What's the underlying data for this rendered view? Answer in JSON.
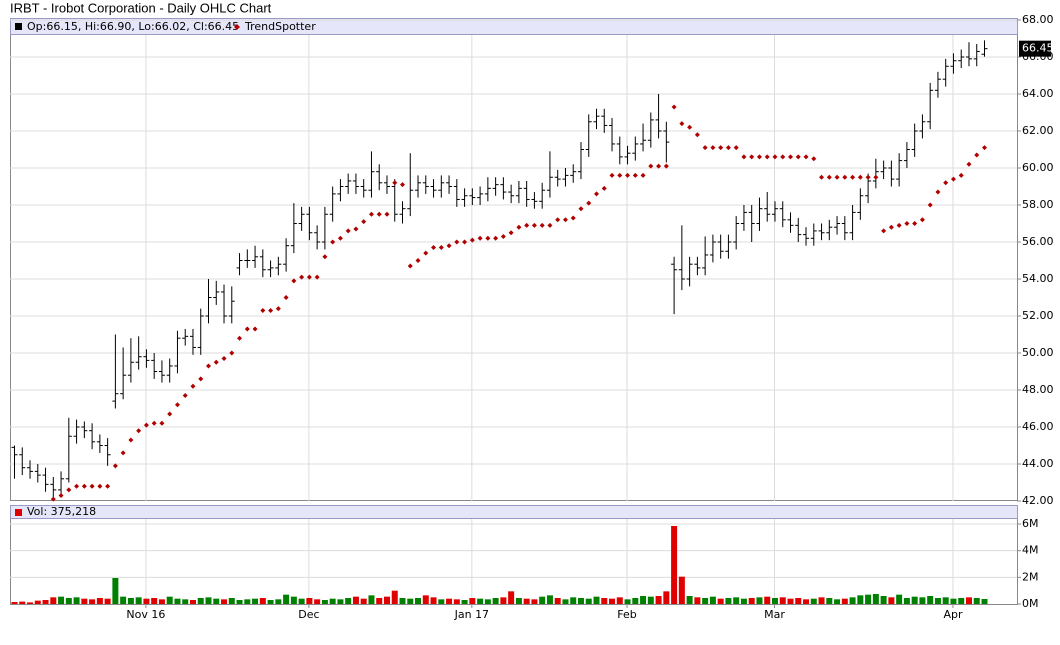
{
  "chart_data": [
    {
      "type": "ohlc",
      "title": "IRBT - Irobot Corporation - Daily OHLC Chart",
      "summary": "Op:66.15, Hi:66.90, Lo:66.02, Cl:66.45",
      "color": "#000000",
      "open": [
        44.9,
        44.5,
        43.8,
        43.6,
        43.4,
        42.9,
        42.6,
        43.2,
        45.5,
        46.0,
        45.8,
        45.2,
        45.0,
        47.4,
        47.8,
        48.8,
        49.5,
        49.8,
        49.6,
        49.0,
        48.8,
        49.3,
        50.8,
        50.9,
        50.3,
        52.0,
        53.0,
        53.3,
        52.0,
        54.6,
        55.0,
        55.0,
        55.2,
        54.5,
        54.6,
        54.8,
        55.8,
        57.0,
        57.5,
        56.5,
        56.0,
        57.5,
        58.6,
        59.0,
        59.3,
        59.0,
        58.8,
        59.8,
        59.2,
        59.0,
        57.5,
        57.8,
        58.8,
        59.2,
        59.0,
        58.8,
        59.2,
        59.0,
        58.3,
        58.5,
        58.4,
        58.6,
        58.9,
        59.1,
        58.7,
        58.5,
        58.9,
        58.3,
        58.2,
        58.8,
        59.5,
        59.4,
        59.6,
        59.8,
        61.0,
        62.5,
        62.8,
        62.3,
        61.3,
        60.6,
        60.8,
        61.3,
        61.5,
        62.6,
        62.0,
        54.8,
        54.5,
        54.0,
        54.8,
        54.6,
        55.3,
        56.0,
        55.5,
        56.0,
        57.0,
        57.6,
        57.0,
        57.8,
        57.5,
        57.8,
        57.2,
        56.9,
        56.4,
        56.2,
        56.6,
        56.5,
        56.8,
        57.0,
        56.5,
        57.6,
        58.5,
        59.3,
        59.8,
        60.0,
        59.4,
        60.4,
        61.0,
        62.0,
        62.5,
        64.2,
        64.8,
        65.5,
        65.8,
        66.0,
        65.9,
        66.15
      ],
      "high": [
        45.0,
        44.9,
        44.2,
        44.0,
        43.8,
        43.3,
        43.6,
        46.5,
        46.4,
        46.3,
        46.2,
        45.6,
        45.4,
        51.0,
        50.3,
        50.8,
        50.9,
        50.2,
        50.0,
        49.6,
        49.7,
        51.2,
        51.3,
        51.3,
        52.4,
        54.0,
        53.9,
        53.7,
        53.6,
        55.4,
        55.6,
        55.8,
        55.6,
        55.0,
        55.2,
        56.2,
        58.1,
        57.9,
        57.9,
        56.9,
        57.9,
        59.0,
        59.4,
        59.7,
        59.7,
        59.4,
        60.9,
        60.2,
        59.6,
        59.4,
        58.2,
        60.8,
        59.6,
        59.6,
        59.4,
        59.6,
        59.6,
        59.4,
        58.9,
        58.9,
        59.0,
        59.5,
        59.5,
        59.5,
        59.1,
        59.3,
        59.3,
        58.7,
        59.2,
        60.9,
        59.9,
        60.0,
        60.2,
        61.4,
        62.9,
        63.2,
        63.2,
        62.7,
        61.7,
        61.2,
        61.7,
        62.4,
        63.0,
        64.0,
        62.5,
        55.2,
        56.9,
        55.2,
        55.2,
        56.3,
        56.4,
        56.4,
        56.4,
        57.4,
        58.0,
        58.0,
        58.4,
        58.7,
        58.2,
        58.2,
        57.6,
        57.3,
        56.8,
        57.0,
        57.0,
        57.2,
        57.4,
        57.4,
        58.0,
        58.9,
        59.7,
        60.5,
        60.4,
        60.4,
        60.8,
        61.4,
        62.4,
        62.9,
        64.6,
        65.2,
        65.9,
        66.2,
        66.4,
        66.8,
        66.7,
        66.9
      ],
      "low": [
        43.2,
        43.4,
        43.2,
        43.0,
        42.5,
        42.2,
        42.2,
        43.0,
        45.1,
        45.4,
        44.8,
        44.6,
        43.9,
        47.0,
        47.5,
        48.4,
        49.1,
        49.2,
        48.6,
        48.4,
        48.4,
        48.9,
        50.4,
        49.9,
        49.9,
        51.6,
        52.6,
        51.6,
        51.6,
        54.2,
        54.6,
        54.6,
        54.1,
        54.1,
        54.2,
        54.4,
        55.4,
        56.6,
        56.1,
        55.6,
        55.6,
        57.1,
        58.2,
        58.6,
        58.6,
        58.4,
        58.4,
        58.8,
        58.6,
        57.1,
        57.0,
        57.4,
        58.4,
        58.6,
        58.4,
        58.4,
        58.6,
        57.9,
        57.9,
        58.0,
        58.0,
        58.2,
        58.5,
        58.3,
        58.1,
        58.1,
        57.9,
        57.8,
        57.8,
        58.4,
        59.0,
        59.0,
        59.2,
        59.4,
        60.6,
        62.1,
        61.9,
        60.9,
        60.2,
        60.2,
        60.4,
        60.9,
        61.1,
        61.6,
        60.3,
        52.1,
        53.4,
        53.6,
        54.2,
        54.2,
        54.9,
        55.1,
        55.1,
        55.6,
        56.6,
        56.0,
        56.6,
        57.1,
        57.1,
        56.8,
        56.5,
        56.0,
        55.8,
        55.8,
        56.1,
        56.1,
        56.4,
        56.1,
        56.1,
        57.2,
        58.1,
        58.9,
        59.4,
        59.0,
        59.0,
        60.0,
        60.6,
        61.6,
        62.1,
        63.8,
        64.4,
        65.1,
        65.4,
        65.5,
        65.5,
        66.02
      ],
      "close": [
        44.5,
        43.8,
        43.6,
        43.4,
        42.9,
        42.6,
        43.2,
        45.5,
        46.0,
        45.8,
        45.2,
        45.0,
        44.5,
        47.8,
        48.8,
        49.5,
        49.8,
        49.6,
        49.0,
        48.8,
        49.3,
        50.8,
        50.9,
        50.3,
        52.0,
        53.0,
        53.3,
        52.0,
        52.8,
        55.0,
        55.0,
        55.2,
        54.5,
        54.6,
        54.8,
        55.8,
        57.0,
        57.5,
        56.5,
        56.0,
        57.5,
        58.6,
        59.0,
        59.3,
        59.0,
        58.8,
        59.8,
        59.2,
        59.0,
        57.5,
        57.8,
        58.8,
        59.2,
        59.0,
        58.8,
        59.2,
        59.0,
        58.3,
        58.5,
        58.4,
        58.6,
        58.9,
        59.1,
        58.7,
        58.5,
        58.9,
        58.3,
        58.2,
        58.8,
        59.5,
        59.4,
        59.6,
        59.8,
        61.0,
        62.5,
        62.8,
        62.3,
        61.3,
        60.6,
        60.8,
        61.3,
        61.5,
        62.6,
        62.0,
        61.4,
        54.5,
        54.0,
        54.8,
        54.6,
        55.3,
        56.0,
        55.5,
        56.0,
        57.0,
        57.6,
        57.0,
        57.8,
        57.5,
        57.8,
        57.2,
        56.9,
        56.4,
        56.2,
        56.6,
        56.5,
        56.8,
        57.0,
        56.5,
        57.6,
        58.5,
        59.3,
        59.8,
        60.0,
        59.4,
        60.4,
        61.0,
        62.0,
        62.5,
        64.2,
        64.8,
        65.5,
        65.8,
        66.0,
        65.9,
        66.3,
        66.45
      ],
      "series": [
        {
          "name": "TrendSpotter",
          "color": "#b00000",
          "values": [
            null,
            null,
            null,
            null,
            null,
            42.1,
            42.3,
            42.6,
            42.8,
            42.8,
            42.8,
            42.8,
            42.8,
            43.9,
            44.6,
            45.3,
            45.8,
            46.1,
            46.2,
            46.2,
            46.7,
            47.2,
            47.7,
            48.2,
            48.6,
            49.3,
            49.5,
            49.7,
            50.0,
            50.8,
            51.3,
            51.3,
            52.3,
            52.3,
            52.4,
            53.0,
            53.9,
            54.1,
            54.1,
            54.1,
            55.2,
            56.0,
            56.2,
            56.6,
            56.7,
            57.1,
            57.5,
            57.5,
            57.5,
            59.2,
            59.1,
            54.7,
            55.0,
            55.4,
            55.7,
            55.7,
            55.8,
            56.0,
            56.0,
            56.1,
            56.2,
            56.2,
            56.2,
            56.3,
            56.5,
            56.8,
            56.9,
            56.9,
            56.9,
            56.9,
            57.2,
            57.2,
            57.3,
            57.8,
            58.1,
            58.6,
            58.9,
            59.6,
            59.6,
            59.6,
            59.6,
            59.6,
            60.1,
            60.1,
            60.1,
            63.3,
            62.4,
            62.2,
            61.8,
            61.1,
            61.1,
            61.1,
            61.1,
            61.1,
            60.6,
            60.6,
            60.6,
            60.6,
            60.6,
            60.6,
            60.6,
            60.6,
            60.6,
            60.5,
            59.5,
            59.5,
            59.5,
            59.5,
            59.5,
            59.5,
            59.5,
            59.5,
            56.6,
            56.8,
            56.9,
            57.0,
            57.0,
            57.2,
            58.0,
            58.7,
            59.2,
            59.4,
            59.6,
            60.2,
            60.7,
            61.1
          ]
        }
      ],
      "ylim": [
        42,
        68
      ],
      "yticks": [
        {
          "value": 42,
          "label": "42.00"
        },
        {
          "value": 44,
          "label": "44.00"
        },
        {
          "value": 46,
          "label": "46.00"
        },
        {
          "value": 48,
          "label": "48.00"
        },
        {
          "value": 50,
          "label": "50.00"
        },
        {
          "value": 52,
          "label": "52.00"
        },
        {
          "value": 54,
          "label": "54.00"
        },
        {
          "value": 56,
          "label": "56.00"
        },
        {
          "value": 58,
          "label": "58.00"
        },
        {
          "value": 60,
          "label": "60.00"
        },
        {
          "value": 62,
          "label": "62.00"
        },
        {
          "value": 64,
          "label": "64.00"
        },
        {
          "value": 66,
          "label": "66.00"
        },
        {
          "value": 68,
          "label": "68.00"
        }
      ],
      "xticks": [
        {
          "value": 17,
          "label": "Nov 16"
        },
        {
          "value": 38,
          "label": "Dec"
        },
        {
          "value": 59,
          "label": "Jan 17"
        },
        {
          "value": 79,
          "label": "Feb"
        },
        {
          "value": 98,
          "label": "Mar"
        },
        {
          "value": 121,
          "label": "Apr"
        }
      ],
      "grid": true
    },
    {
      "type": "bar",
      "title": "Vol: 375,218",
      "up_color": "#008000",
      "down_color": "#e00000",
      "values": [
        150000,
        180000,
        120000,
        250000,
        300000,
        500000,
        550000,
        450000,
        500000,
        400000,
        350000,
        450000,
        400000,
        1950000,
        550000,
        450000,
        500000,
        400000,
        450000,
        350000,
        550000,
        400000,
        350000,
        300000,
        450000,
        500000,
        400000,
        350000,
        450000,
        300000,
        350000,
        400000,
        450000,
        300000,
        350000,
        700000,
        550000,
        400000,
        450000,
        350000,
        300000,
        400000,
        350000,
        450000,
        550000,
        400000,
        650000,
        450000,
        550000,
        1000000,
        450000,
        400000,
        450000,
        650000,
        500000,
        350000,
        400000,
        350000,
        300000,
        450000,
        400000,
        350000,
        450000,
        500000,
        950000,
        450000,
        400000,
        350000,
        550000,
        650000,
        450000,
        350000,
        500000,
        450000,
        400000,
        550000,
        450000,
        400000,
        500000,
        350000,
        450000,
        600000,
        550000,
        600000,
        950000,
        5850000,
        2050000,
        600000,
        500000,
        450000,
        550000,
        400000,
        450000,
        500000,
        400000,
        450000,
        500000,
        550000,
        450000,
        500000,
        400000,
        450000,
        350000,
        400000,
        500000,
        450000,
        350000,
        400000,
        500000,
        650000,
        700000,
        750000,
        600000,
        500000,
        700000,
        450000,
        550000,
        500000,
        600000,
        450000,
        500000,
        400000,
        450000,
        500000,
        450000,
        375218
      ],
      "ylim": [
        0,
        6450000
      ],
      "yticks": [
        {
          "value": 0,
          "label": "0M"
        },
        {
          "value": 2000000,
          "label": "2M"
        },
        {
          "value": 4000000,
          "label": "4M"
        },
        {
          "value": 6000000,
          "label": "6M"
        }
      ],
      "grid": true
    }
  ]
}
